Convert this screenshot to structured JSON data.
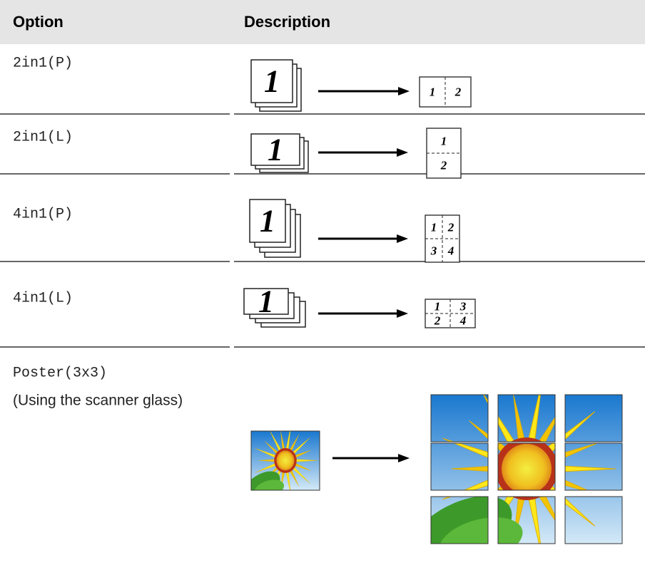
{
  "header": {
    "option": "Option",
    "description": "Description"
  },
  "rows": [
    {
      "option": "2in1(P)",
      "original": "1",
      "result": [
        "1",
        "2"
      ]
    },
    {
      "option": "2in1(L)",
      "original": "1",
      "result": [
        "1",
        "2"
      ]
    },
    {
      "option": "4in1(P)",
      "original": "1",
      "result": [
        "1",
        "2",
        "3",
        "4"
      ]
    },
    {
      "option": "4in1(L)",
      "original": "1",
      "result": [
        "1",
        "2",
        "3",
        "4"
      ]
    },
    {
      "option": "Poster(3x3)",
      "note": "(Using the scanner glass)"
    }
  ]
}
